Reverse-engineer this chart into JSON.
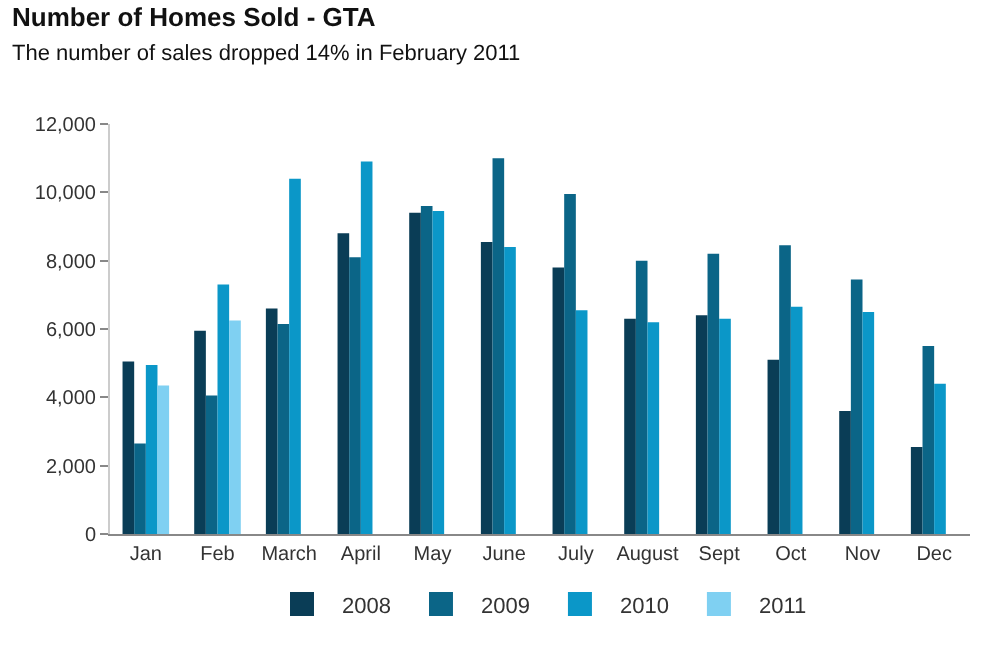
{
  "chart_data": {
    "type": "bar",
    "title": "Number of Homes Sold - GTA",
    "subtitle": "The number of sales dropped 14% in February 2011",
    "categories": [
      "Jan",
      "Feb",
      "March",
      "April",
      "May",
      "June",
      "July",
      "August",
      "Sept",
      "Oct",
      "Nov",
      "Dec"
    ],
    "series": [
      {
        "name": "2008",
        "color": "#0a3d56",
        "values": [
          5050,
          5950,
          6600,
          8800,
          9400,
          8550,
          7800,
          6300,
          6400,
          5100,
          3600,
          2550
        ]
      },
      {
        "name": "2009",
        "color": "#0b6587",
        "values": [
          2650,
          4050,
          6150,
          8100,
          9600,
          11000,
          9950,
          8000,
          8200,
          8450,
          7450,
          5500
        ]
      },
      {
        "name": "2010",
        "color": "#0b97c8",
        "values": [
          4950,
          7300,
          10400,
          10900,
          9450,
          8400,
          6550,
          6200,
          6300,
          6650,
          6500,
          4400
        ]
      },
      {
        "name": "2011",
        "color": "#7fd0f2",
        "values": [
          4350,
          6250,
          null,
          null,
          null,
          null,
          null,
          null,
          null,
          null,
          null,
          null
        ]
      }
    ],
    "ylim": [
      0,
      12000
    ],
    "yticks": [
      {
        "value": 0,
        "label": "0"
      },
      {
        "value": 2000,
        "label": "2,000"
      },
      {
        "value": 4000,
        "label": "4,000"
      },
      {
        "value": 6000,
        "label": "6,000"
      },
      {
        "value": 8000,
        "label": "8,000"
      },
      {
        "value": 10000,
        "label": "10,000"
      },
      {
        "value": 12000,
        "label": "12,000"
      }
    ],
    "legend": "bottom"
  }
}
